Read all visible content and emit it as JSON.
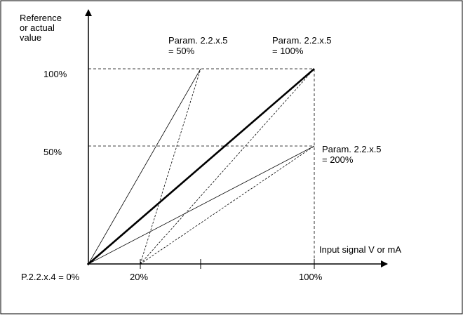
{
  "diagram": {
    "y_axis_label": [
      "Reference",
      "or actual",
      "value"
    ],
    "x_axis_label": "Input signal V or mA",
    "y_ticks": {
      "top": "100%",
      "mid": "50%"
    },
    "x_ticks": {
      "zero": "P.2.2.x.4 = 0%",
      "twenty": "20%",
      "hundred": "100%"
    },
    "curve_labels": {
      "p50": [
        "Param. 2.2.x.5",
        "= 50%"
      ],
      "p100": [
        "Param. 2.2.x.5",
        "= 100%"
      ],
      "p200": [
        "Param. 2.2.x.5",
        "= 200%"
      ]
    },
    "colors": {
      "line": "#000000",
      "background": "#ffffff",
      "frame": "#000000"
    }
  }
}
